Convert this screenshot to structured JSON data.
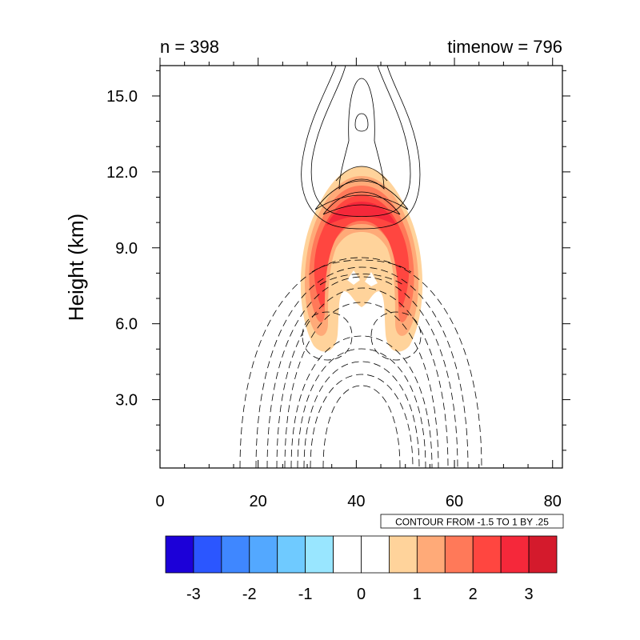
{
  "chart_data": {
    "type": "contour",
    "title_left": "n = 398",
    "title_right": "timenow = 796",
    "xlabel": "",
    "ylabel": "Height (km)",
    "xlim": [
      0,
      82
    ],
    "ylim": [
      0.3,
      16.2
    ],
    "xticks": [
      0,
      20,
      40,
      60,
      80
    ],
    "xtick_labels": [
      "0",
      "20",
      "40",
      "60",
      "80"
    ],
    "yticks": [
      3,
      6,
      9,
      12,
      15
    ],
    "ytick_labels": [
      "3.0",
      "6.0",
      "9.0",
      "12.0",
      "15.0"
    ],
    "contour_info": "CONTOUR FROM -1.5 TO 1 BY .25",
    "colorbar": {
      "colors": [
        "#1c00d8",
        "#2b56ff",
        "#3f87ff",
        "#53a8ff",
        "#6fcaff",
        "#99e6ff",
        "#ffffff",
        "#ffffff",
        "#ffd39b",
        "#ffaa78",
        "#ff7959",
        "#ff4640",
        "#f5283a",
        "#d41a2c"
      ],
      "labels": [
        "-3",
        "-2",
        "-1",
        "0",
        "1",
        "2",
        "3"
      ],
      "label_positions": [
        1,
        3,
        5,
        7,
        9,
        11,
        13
      ]
    }
  }
}
